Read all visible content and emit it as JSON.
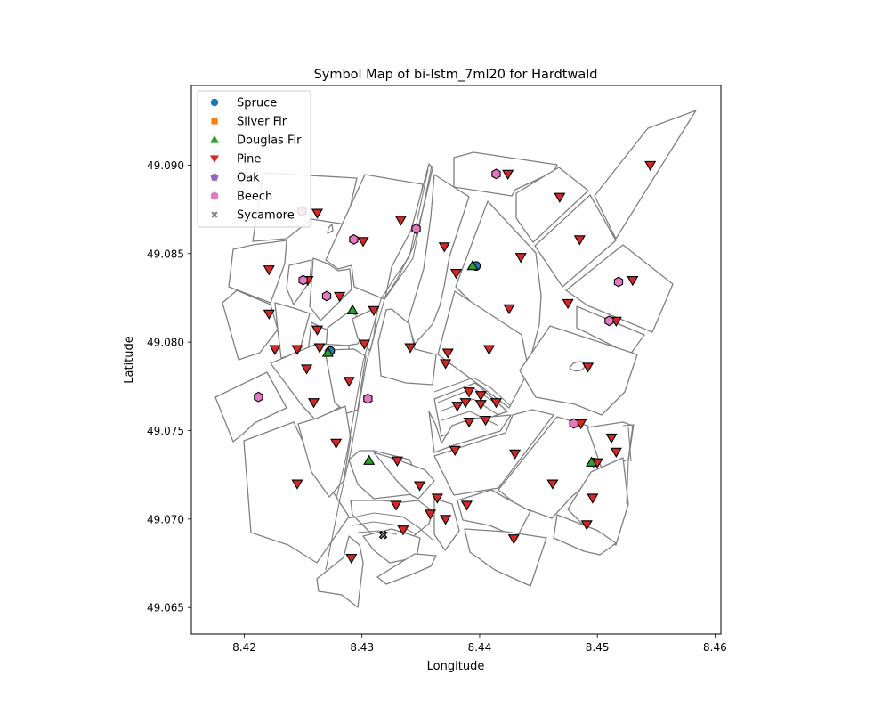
{
  "chart_data": {
    "type": "scatter",
    "title": "Symbol Map of bi-lstm_7ml20 for Hardtwald",
    "xlabel": "Longitude",
    "ylabel": "Latitude",
    "xlim": [
      8.4155,
      8.4605
    ],
    "ylim": [
      49.0635,
      49.0945
    ],
    "x_ticks": [
      8.42,
      8.43,
      8.44,
      8.45,
      8.46
    ],
    "x_tick_labels": [
      "8.42",
      "8.43",
      "8.44",
      "8.45",
      "8.46"
    ],
    "y_ticks": [
      49.065,
      49.07,
      49.075,
      49.08,
      49.085,
      49.09
    ],
    "y_tick_labels": [
      "49.065",
      "49.070",
      "49.075",
      "49.080",
      "49.085",
      "49.090"
    ],
    "grid": false,
    "legend_position": "top-left",
    "series": [
      {
        "name": "Spruce",
        "marker": "circle",
        "color": "#1f77b4",
        "points": [
          [
            8.4273,
            49.0795
          ],
          [
            8.4397,
            49.0843
          ],
          [
            8.4497,
            49.0732
          ]
        ]
      },
      {
        "name": "Silver Fir",
        "marker": "square",
        "color": "#ff7f0e",
        "points": []
      },
      {
        "name": "Douglas Fir",
        "marker": "triangle-up",
        "color": "#2ca02c",
        "points": [
          [
            8.4271,
            49.0794
          ],
          [
            8.4292,
            49.0818
          ],
          [
            8.4306,
            49.0733
          ],
          [
            8.4394,
            49.0843
          ],
          [
            8.4495,
            49.0732
          ]
        ]
      },
      {
        "name": "Pine",
        "marker": "triangle-down",
        "color": "#d62728",
        "points": [
          [
            8.4262,
            49.0873
          ],
          [
            8.4333,
            49.0869
          ],
          [
            8.4301,
            49.0857
          ],
          [
            8.437,
            49.0854
          ],
          [
            8.4424,
            49.0895
          ],
          [
            8.4468,
            49.0882
          ],
          [
            8.4485,
            49.0858
          ],
          [
            8.4545,
            49.09
          ],
          [
            8.4435,
            49.0848
          ],
          [
            8.4221,
            49.0841
          ],
          [
            8.4254,
            49.0835
          ],
          [
            8.4281,
            49.0826
          ],
          [
            8.438,
            49.0839
          ],
          [
            8.453,
            49.0835
          ],
          [
            8.4475,
            49.0822
          ],
          [
            8.4221,
            49.0816
          ],
          [
            8.431,
            49.0818
          ],
          [
            8.4425,
            49.0819
          ],
          [
            8.4516,
            49.0812
          ],
          [
            8.4262,
            49.0807
          ],
          [
            8.4226,
            49.0796
          ],
          [
            8.4245,
            49.0796
          ],
          [
            8.4264,
            49.0797
          ],
          [
            8.4302,
            49.0799
          ],
          [
            8.4341,
            49.0797
          ],
          [
            8.4373,
            49.0794
          ],
          [
            8.4408,
            49.0796
          ],
          [
            8.4371,
            49.0788
          ],
          [
            8.4253,
            49.0785
          ],
          [
            8.4289,
            49.0778
          ],
          [
            8.4492,
            49.0786
          ],
          [
            8.4391,
            49.0772
          ],
          [
            8.4401,
            49.077
          ],
          [
            8.4259,
            49.0766
          ],
          [
            8.4388,
            49.0766
          ],
          [
            8.4381,
            49.0764
          ],
          [
            8.4401,
            49.0765
          ],
          [
            8.4414,
            49.0766
          ],
          [
            8.4405,
            49.0756
          ],
          [
            8.4391,
            49.0755
          ],
          [
            8.4486,
            49.0754
          ],
          [
            8.4278,
            49.0743
          ],
          [
            8.4379,
            49.0739
          ],
          [
            8.443,
            49.0737
          ],
          [
            8.4512,
            49.0746
          ],
          [
            8.4516,
            49.0738
          ],
          [
            8.433,
            49.0733
          ],
          [
            8.45,
            49.0732
          ],
          [
            8.4245,
            49.072
          ],
          [
            8.4349,
            49.0719
          ],
          [
            8.4462,
            49.072
          ],
          [
            8.4364,
            49.0712
          ],
          [
            8.4496,
            49.0712
          ],
          [
            8.4329,
            49.0708
          ],
          [
            8.4389,
            49.0708
          ],
          [
            8.4358,
            49.0703
          ],
          [
            8.4371,
            49.07
          ],
          [
            8.4491,
            49.0697
          ],
          [
            8.4335,
            49.0694
          ],
          [
            8.4429,
            49.0689
          ],
          [
            8.4291,
            49.0678
          ]
        ]
      },
      {
        "name": "Oak",
        "marker": "pentagon",
        "color": "#9467bd",
        "points": []
      },
      {
        "name": "Beech",
        "marker": "hexagon",
        "color": "#e377c2",
        "points": [
          [
            8.4249,
            49.0874
          ],
          [
            8.4414,
            49.0895
          ],
          [
            8.4293,
            49.0858
          ],
          [
            8.4346,
            49.0864
          ],
          [
            8.425,
            49.0835
          ],
          [
            8.4518,
            49.0834
          ],
          [
            8.427,
            49.0826
          ],
          [
            8.451,
            49.0812
          ],
          [
            8.4212,
            49.0769
          ],
          [
            8.4305,
            49.0768
          ],
          [
            8.448,
            49.0754
          ]
        ]
      },
      {
        "name": "Sycamore",
        "marker": "x",
        "color": "#7f7f7f",
        "points": [
          [
            8.4318,
            49.0691
          ]
        ]
      }
    ]
  }
}
